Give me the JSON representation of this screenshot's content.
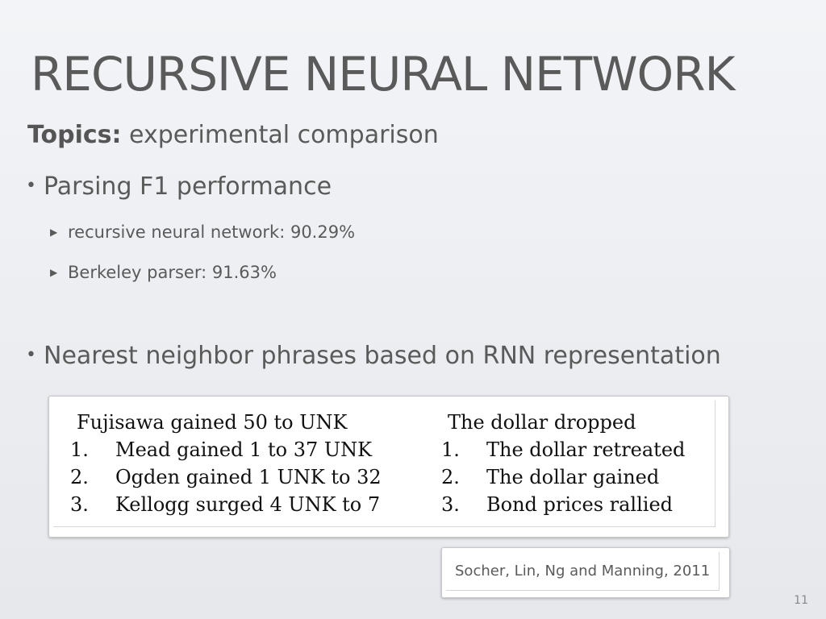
{
  "slide": {
    "title": "RECURSIVE NEURAL NETWORK",
    "topics_label": "Topics:",
    "topics_text": " experimental comparison",
    "page_number": "11"
  },
  "bullets": [
    {
      "text": "Parsing F1 performance",
      "sub_items": [
        "recursive neural network: 90.29%",
        "Berkeley parser: 91.63%"
      ]
    },
    {
      "text": "Nearest neighbor phrases based on RNN representation",
      "sub_items": []
    }
  ],
  "neighbor_table": {
    "left": {
      "query": "Fujisawa gained 50 to UNK",
      "neighbors": [
        {
          "rank": "1.",
          "phrase": "Mead gained 1 to 37 UNK"
        },
        {
          "rank": "2.",
          "phrase": "Ogden gained 1 UNK to 32"
        },
        {
          "rank": "3.",
          "phrase": "Kellogg surged 4 UNK to 7"
        }
      ]
    },
    "right": {
      "query": "The dollar dropped",
      "neighbors": [
        {
          "rank": "1.",
          "phrase": "The dollar retreated"
        },
        {
          "rank": "2.",
          "phrase": "The dollar gained"
        },
        {
          "rank": "3.",
          "phrase": "Bond prices rallied"
        }
      ]
    }
  },
  "citation": "Socher, Lin, Ng and Manning, 2011",
  "icons": {
    "bullet": "bullet-dot-icon",
    "sub_bullet": "triangle-right-icon"
  }
}
